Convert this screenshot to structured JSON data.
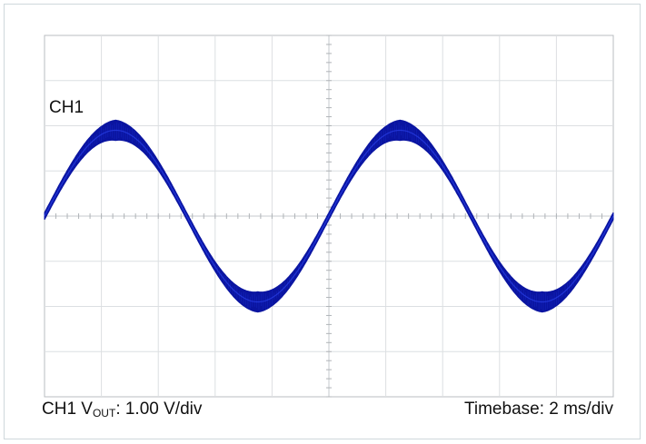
{
  "chart_data": {
    "type": "line",
    "title": "",
    "channel_label": "CH1",
    "scale": {
      "prefix": "CH1 V",
      "subscript": "OUT",
      "suffix": ": 1.00 V/div",
      "volts_per_div": 1.0
    },
    "timebase": {
      "label": "Timebase: 2 ms/div",
      "ms_per_div": 2
    },
    "grid": true,
    "divisions": {
      "x": 10,
      "y": 8
    },
    "xlim_ms": [
      0,
      20
    ],
    "ylim_div": [
      -4,
      4
    ],
    "series": [
      {
        "type": "noisy-sine",
        "color": "#0a14a0",
        "amplitude_div": 1.9,
        "band_width_div": 0.45,
        "period_ms": 10,
        "phase_deg": 0,
        "points": [
          {
            "t_ms": 0,
            "v_div": 0.0
          },
          {
            "t_ms": 2.5,
            "v_div": 1.9
          },
          {
            "t_ms": 5,
            "v_div": 0.0
          },
          {
            "t_ms": 7.5,
            "v_div": -1.9
          },
          {
            "t_ms": 10,
            "v_div": 0.0
          },
          {
            "t_ms": 12.5,
            "v_div": 1.9
          },
          {
            "t_ms": 15,
            "v_div": 0.0
          },
          {
            "t_ms": 17.5,
            "v_div": -1.9
          },
          {
            "t_ms": 20,
            "v_div": 0.0
          }
        ]
      }
    ]
  }
}
